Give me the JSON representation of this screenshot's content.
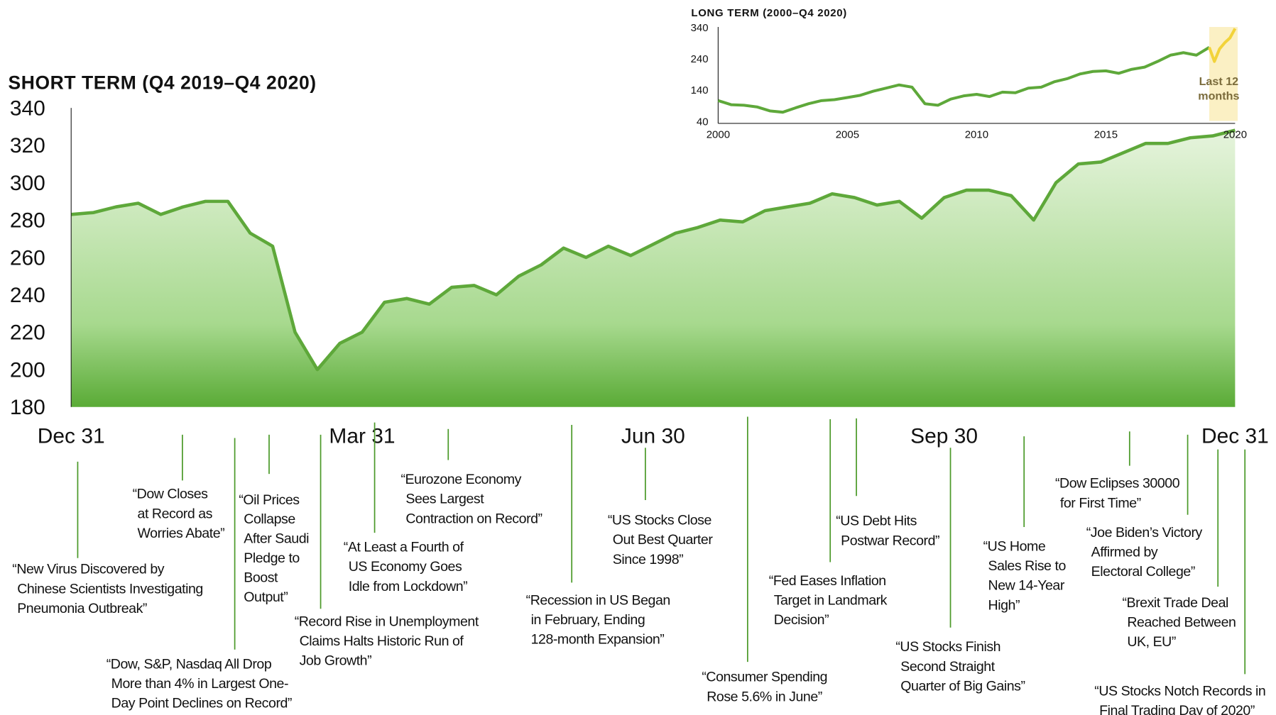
{
  "chart_data": [
    {
      "type": "area-line",
      "title": "SHORT TERM (Q4 2019–Q4 2020)",
      "categories": [
        "Dec 31",
        null,
        null,
        null,
        null,
        null,
        null,
        null,
        null,
        null,
        null,
        null,
        null,
        "Mar 31",
        null,
        null,
        null,
        null,
        null,
        null,
        null,
        null,
        null,
        null,
        null,
        null,
        "Jun 30",
        null,
        null,
        null,
        null,
        null,
        null,
        null,
        null,
        null,
        null,
        null,
        null,
        "Sep 30",
        null,
        null,
        null,
        null,
        null,
        null,
        null,
        null,
        null,
        null,
        null,
        null,
        "Dec 31"
      ],
      "series": [
        {
          "name": null,
          "color": "#5ea83a",
          "values": [
            283,
            284,
            287,
            289,
            283,
            287,
            290,
            290,
            273,
            266,
            220,
            200,
            214,
            220,
            236,
            238,
            235,
            244,
            245,
            240,
            250,
            256,
            265,
            260,
            266,
            261,
            267,
            273,
            276,
            280,
            279,
            285,
            287,
            289,
            294,
            292,
            288,
            290,
            281,
            292,
            296,
            296,
            293,
            280,
            300,
            310,
            311,
            316,
            321,
            321,
            324,
            325,
            328
          ]
        }
      ],
      "ylim": [
        180,
        340
      ],
      "yticks": [
        180,
        200,
        220,
        240,
        260,
        280,
        300,
        320,
        340
      ],
      "annotations": [
        [
          "“New Virus Discovered by",
          "Chinese Scientists Investigating",
          "Pneumonia Outbreak”"
        ],
        [
          "“Dow Closes",
          "at Record as",
          "Worries Abate”"
        ],
        [
          "“Dow, S&P, Nasdaq All Drop",
          "More than 4% in Largest One-",
          "Day Point Declines on Record”"
        ],
        [
          "“Oil Prices",
          "Collapse",
          "After Saudi",
          "Pledge to",
          "Boost",
          "Output”"
        ],
        [
          "“Record Rise in Unemployment",
          "Claims Halts Historic Run of",
          "Job Growth”"
        ],
        [
          "“At Least a Fourth of",
          "US Economy Goes",
          "Idle from Lockdown”"
        ],
        [
          "“Eurozone Economy",
          "Sees Largest",
          "Contraction on Record”"
        ],
        [
          "“Recession in US Began",
          "in February, Ending",
          "128-month Expansion”"
        ],
        [
          "“US Stocks Close",
          "Out Best Quarter",
          "Since 1998”"
        ],
        [
          "“Consumer Spending",
          "Rose 5.6% in June”"
        ],
        [
          "“Fed Eases Inflation",
          "Target in Landmark",
          "Decision”"
        ],
        [
          "“US Debt Hits",
          "Postwar Record”"
        ],
        [
          "“US Stocks Finish",
          "Second Straight",
          "Quarter of Big Gains”"
        ],
        [
          "“US Home",
          "Sales Rise to",
          "New 14-Year",
          "High”"
        ],
        [
          "“Dow Eclipses 30000",
          "for First Time”"
        ],
        [
          "“Joe Biden’s Victory",
          "Affirmed by",
          "Electoral College”"
        ],
        [
          "“Brexit Trade Deal",
          "Reached Between",
          "UK, EU”"
        ],
        [
          "“US Stocks Notch Records in",
          "Final Trading Day of 2020”"
        ]
      ]
    },
    {
      "type": "line",
      "title": "LONG TERM (2000–Q4 2020)",
      "series": [
        {
          "name": null,
          "color": "#5ea83a",
          "x": [
            2000,
            2000.5,
            2001,
            2001.5,
            2002,
            2002.5,
            2003,
            2003.5,
            2004,
            2004.5,
            2005,
            2005.5,
            2006,
            2006.5,
            2007,
            2007.5,
            2008,
            2008.5,
            2009,
            2009.5,
            2010,
            2010.5,
            2011,
            2011.5,
            2012,
            2012.5,
            2013,
            2013.5,
            2014,
            2014.5,
            2015,
            2015.5,
            2016,
            2016.5,
            2017,
            2017.5,
            2018,
            2018.5,
            2019
          ],
          "values": [
            105,
            92,
            90,
            85,
            72,
            68,
            82,
            95,
            105,
            108,
            115,
            122,
            135,
            145,
            155,
            148,
            95,
            90,
            110,
            120,
            125,
            118,
            132,
            130,
            145,
            148,
            165,
            175,
            190,
            198,
            200,
            192,
            205,
            212,
            230,
            250,
            258,
            250,
            275
          ]
        },
        {
          "name": null,
          "color": "#f2d33a",
          "x": [
            2019,
            2019.2,
            2019.4,
            2019.6,
            2019.8,
            2020
          ],
          "values": [
            275,
            230,
            270,
            290,
            305,
            335
          ]
        }
      ],
      "xlim": [
        2000,
        2020
      ],
      "xticks": [
        2000,
        2005,
        2010,
        2015,
        2020
      ],
      "ylim": [
        40,
        340
      ],
      "yticks": [
        40,
        140,
        240,
        340
      ],
      "highlight": [
        2019,
        2020.1
      ],
      "annotation": [
        "Last 12",
        "months"
      ]
    }
  ]
}
